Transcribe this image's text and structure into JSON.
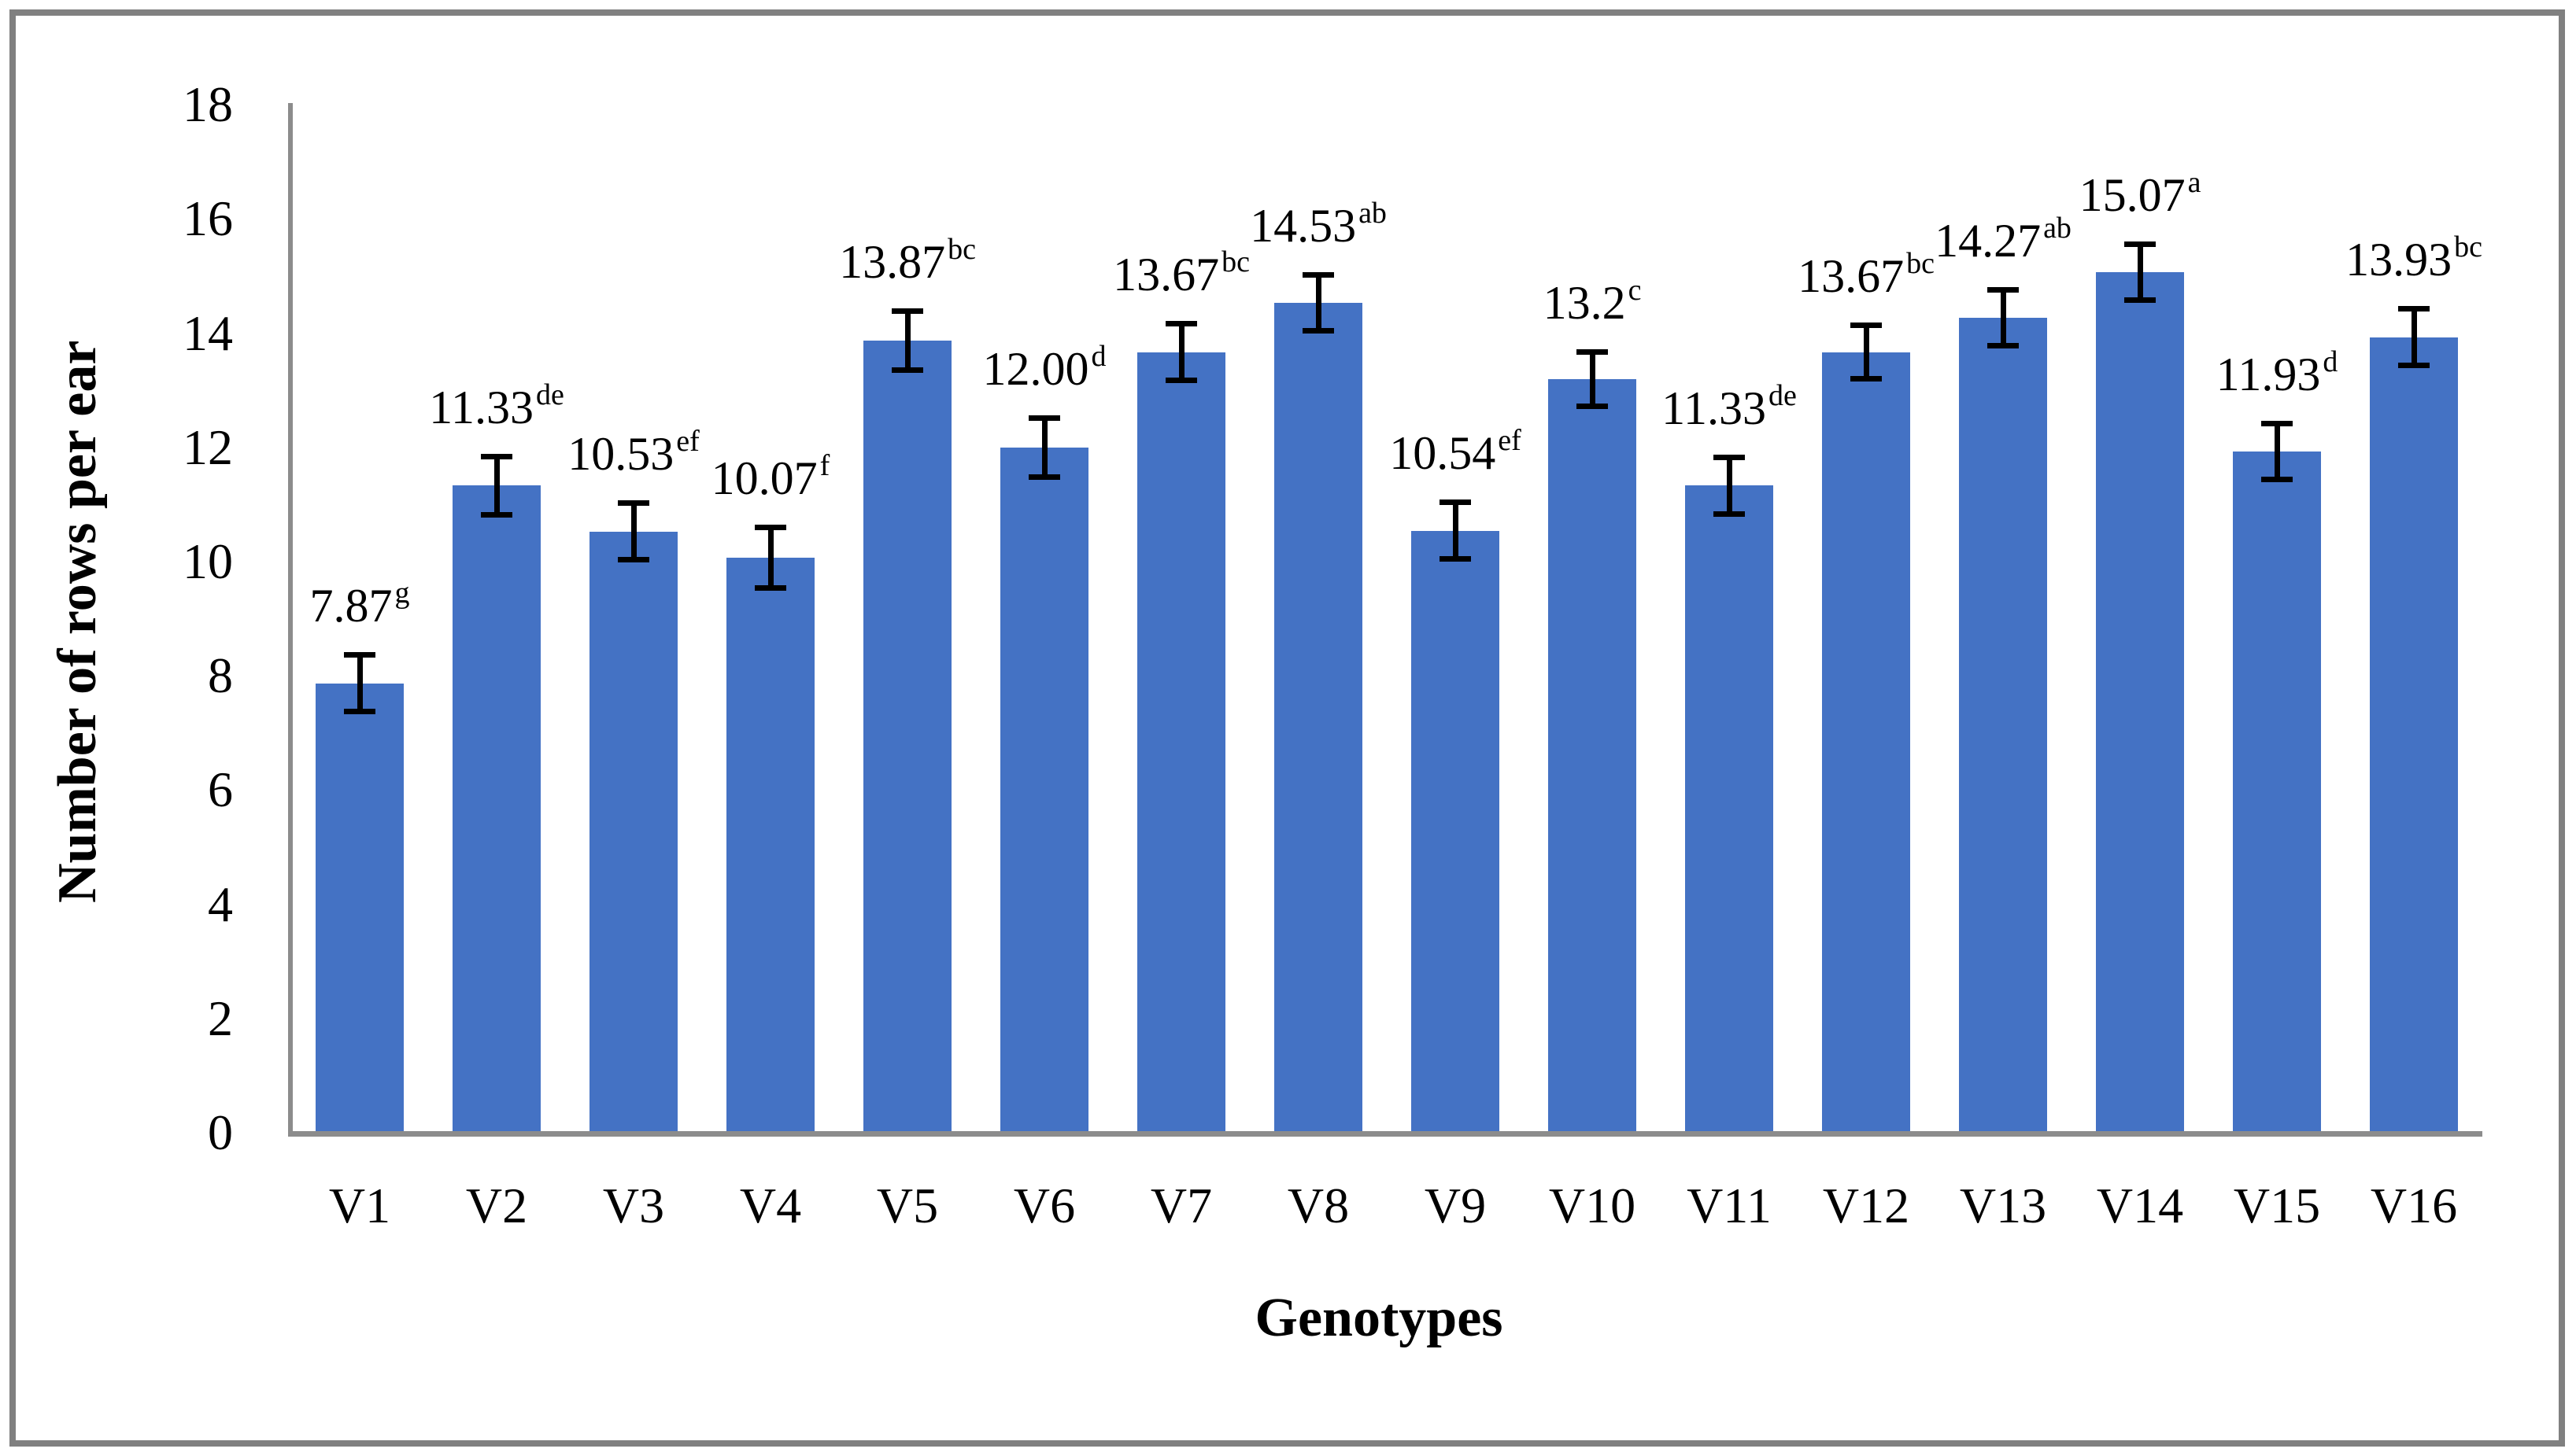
{
  "chart_data": {
    "type": "bar",
    "title": "",
    "xlabel": "Genotypes",
    "ylabel": "Number of rows per ear",
    "categories": [
      "V1",
      "V2",
      "V3",
      "V4",
      "V5",
      "V6",
      "V7",
      "V8",
      "V9",
      "V10",
      "V11",
      "V12",
      "V13",
      "V14",
      "V15",
      "V16"
    ],
    "values": [
      7.87,
      11.33,
      10.53,
      10.07,
      13.87,
      12.0,
      13.67,
      14.53,
      10.54,
      13.2,
      11.33,
      13.67,
      14.27,
      15.07,
      11.93,
      13.93
    ],
    "value_labels": [
      "7.87",
      "11.33",
      "10.53",
      "10.07",
      "13.87",
      "12.00",
      "13.67",
      "14.53",
      "10.54",
      "13.2",
      "11.33",
      "13.67",
      "14.27",
      "15.07",
      "11.93",
      "13.93"
    ],
    "superscripts": [
      "g",
      "de",
      "ef",
      "f",
      "bc",
      "d",
      "bc",
      "ab",
      "ef",
      "c",
      "de",
      "bc",
      "ab",
      "a",
      "d",
      "bc"
    ],
    "error_bars": [
      0.5,
      0.52,
      0.5,
      0.54,
      0.52,
      0.52,
      0.5,
      0.5,
      0.5,
      0.48,
      0.5,
      0.48,
      0.5,
      0.5,
      0.5,
      0.5
    ],
    "ylim": [
      0,
      18
    ],
    "ytick_step": 2,
    "ytick_labels": [
      "0",
      "2",
      "4",
      "6",
      "8",
      "10",
      "12",
      "14",
      "16",
      "18"
    ],
    "grid": "off",
    "legend": "none",
    "bar_color": "#4472C4",
    "error_bar_color": "#000000",
    "axis_line_color": "#8C8C8C",
    "frame_color": "#808080",
    "text_color": "#000000"
  }
}
